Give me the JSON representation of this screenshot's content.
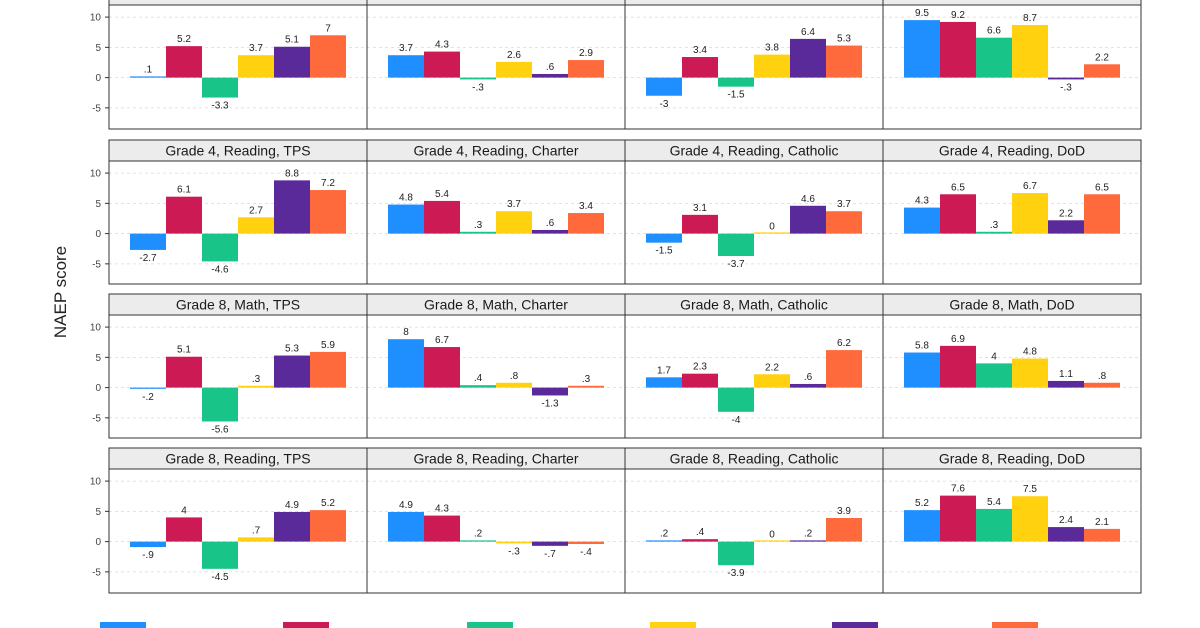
{
  "chart_data": {
    "type": "bar",
    "ylabel": "NAEP score",
    "ylim": [
      -7,
      12
    ],
    "yticks": [
      -5,
      0,
      5,
      10
    ],
    "grid": true,
    "legend_position": "bottom",
    "series_colors": [
      "#1f8fff",
      "#cc1a55",
      "#19c488",
      "#ffd10f",
      "#5b2a9a",
      "#ff6a3d"
    ],
    "panels": [
      {
        "title": "",
        "values": [
          0.1,
          5.2,
          -3.3,
          3.7,
          5.1,
          7
        ],
        "labels": [
          ".1",
          "5.2",
          "-3.3",
          "3.7",
          "5.1",
          "7"
        ]
      },
      {
        "title": "",
        "values": [
          3.7,
          4.3,
          -0.3,
          2.6,
          0.6,
          2.9
        ],
        "labels": [
          "3.7",
          "4.3",
          "-.3",
          "2.6",
          ".6",
          "2.9"
        ]
      },
      {
        "title": "",
        "values": [
          -3,
          3.4,
          -1.5,
          3.8,
          6.4,
          5.3
        ],
        "labels": [
          "-3",
          "3.4",
          "-1.5",
          "3.8",
          "6.4",
          "5.3"
        ]
      },
      {
        "title": "",
        "values": [
          9.5,
          9.2,
          6.6,
          8.7,
          -0.3,
          2.2
        ],
        "labels": [
          "9.5",
          "9.2",
          "6.6",
          "8.7",
          "-.3",
          "2.2"
        ]
      },
      {
        "title": "Grade 4, Reading, TPS",
        "values": [
          -2.7,
          6.1,
          -4.6,
          2.7,
          8.8,
          7.2
        ],
        "labels": [
          "-2.7",
          "6.1",
          "-4.6",
          "2.7",
          "8.8",
          "7.2"
        ]
      },
      {
        "title": "Grade 4, Reading, Charter",
        "values": [
          4.8,
          5.4,
          0.3,
          3.7,
          0.6,
          3.4
        ],
        "labels": [
          "4.8",
          "5.4",
          ".3",
          "3.7",
          ".6",
          "3.4"
        ]
      },
      {
        "title": "Grade 4, Reading, Catholic",
        "values": [
          -1.5,
          3.1,
          -3.7,
          0,
          4.6,
          3.7
        ],
        "labels": [
          "-1.5",
          "3.1",
          "-3.7",
          "0",
          "4.6",
          "3.7"
        ]
      },
      {
        "title": "Grade 4, Reading, DoD",
        "values": [
          4.3,
          6.5,
          0.3,
          6.7,
          2.2,
          6.5
        ],
        "labels": [
          "4.3",
          "6.5",
          ".3",
          "6.7",
          "2.2",
          "6.5"
        ]
      },
      {
        "title": "Grade 8, Math, TPS",
        "values": [
          -0.2,
          5.1,
          -5.6,
          0.3,
          5.3,
          5.9
        ],
        "labels": [
          "-.2",
          "5.1",
          "-5.6",
          ".3",
          "5.3",
          "5.9"
        ]
      },
      {
        "title": "Grade 8, Math, Charter",
        "values": [
          8,
          6.7,
          0.4,
          0.8,
          -1.3,
          0.3
        ],
        "labels": [
          "8",
          "6.7",
          ".4",
          ".8",
          "-1.3",
          ".3"
        ]
      },
      {
        "title": "Grade 8, Math, Catholic",
        "values": [
          1.7,
          2.3,
          -4,
          2.2,
          0.6,
          6.2
        ],
        "labels": [
          "1.7",
          "2.3",
          "-4",
          "2.2",
          ".6",
          "6.2"
        ]
      },
      {
        "title": "Grade 8, Math, DoD",
        "values": [
          5.8,
          6.9,
          4,
          4.8,
          1.1,
          0.8
        ],
        "labels": [
          "5.8",
          "6.9",
          "4",
          "4.8",
          "1.1",
          ".8"
        ]
      },
      {
        "title": "Grade 8, Reading, TPS",
        "values": [
          -0.9,
          4,
          -4.5,
          0.7,
          4.9,
          5.2
        ],
        "labels": [
          "-.9",
          "4",
          "-4.5",
          ".7",
          "4.9",
          "5.2"
        ]
      },
      {
        "title": "Grade 8, Reading, Charter",
        "values": [
          4.9,
          4.3,
          0.2,
          -0.3,
          -0.7,
          -0.4
        ],
        "labels": [
          "4.9",
          "4.3",
          ".2",
          "-.3",
          "-.7",
          "-.4"
        ]
      },
      {
        "title": "Grade 8, Reading, Catholic",
        "values": [
          0.2,
          0.4,
          -3.9,
          0,
          0.2,
          3.9
        ],
        "labels": [
          ".2",
          ".4",
          "-3.9",
          "0",
          ".2",
          "3.9"
        ]
      },
      {
        "title": "Grade 8, Reading, DoD",
        "values": [
          5.2,
          7.6,
          5.4,
          7.5,
          2.4,
          2.1
        ],
        "labels": [
          "5.2",
          "7.6",
          "5.4",
          "7.5",
          "2.4",
          "2.1"
        ]
      }
    ]
  }
}
